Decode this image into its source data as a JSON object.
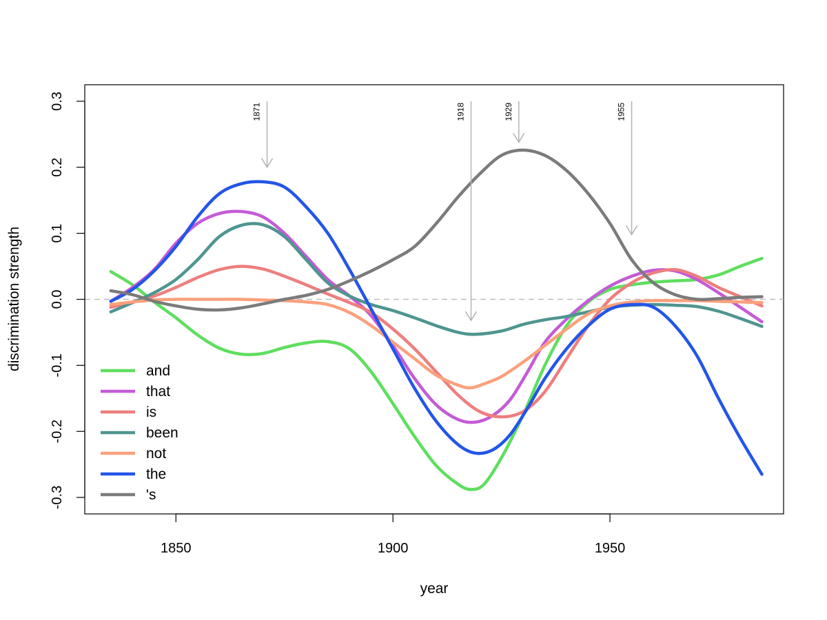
{
  "chart_data": {
    "type": "line",
    "xlabel": "year",
    "ylabel": "discrimination strength",
    "xlim": [
      1829,
      1990
    ],
    "ylim": [
      -0.325,
      0.325
    ],
    "xticks": [
      {
        "value": 1850,
        "label": "1850"
      },
      {
        "value": 1900,
        "label": "1900"
      },
      {
        "value": 1950,
        "label": "1950"
      }
    ],
    "yticks": [
      {
        "value": -0.3,
        "label": "-0.3"
      },
      {
        "value": -0.2,
        "label": "-0.2"
      },
      {
        "value": -0.1,
        "label": "-0.1"
      },
      {
        "value": 0.0,
        "label": "0.0"
      },
      {
        "value": 0.1,
        "label": "0.1"
      },
      {
        "value": 0.2,
        "label": "0.2"
      },
      {
        "value": 0.3,
        "label": "0.3"
      }
    ],
    "reference_line": {
      "y": 0,
      "style": "dashed",
      "color": "#bbbbbb"
    },
    "legend_position": "bottom-left",
    "events": [
      {
        "year": 1871,
        "label": "1871",
        "arrow_to": 0.2
      },
      {
        "year": 1918,
        "label": "1918",
        "arrow_to": -0.032
      },
      {
        "year": 1929,
        "label": "1929",
        "arrow_to": 0.238
      },
      {
        "year": 1955,
        "label": "1955",
        "arrow_to": 0.098
      }
    ],
    "series": [
      {
        "name": "and",
        "color": "#5fde5f",
        "points": [
          [
            1835,
            0.042
          ],
          [
            1840,
            0.022
          ],
          [
            1845,
            -0.004
          ],
          [
            1850,
            -0.028
          ],
          [
            1855,
            -0.054
          ],
          [
            1860,
            -0.074
          ],
          [
            1865,
            -0.083
          ],
          [
            1870,
            -0.082
          ],
          [
            1875,
            -0.073
          ],
          [
            1880,
            -0.066
          ],
          [
            1885,
            -0.064
          ],
          [
            1890,
            -0.075
          ],
          [
            1895,
            -0.11
          ],
          [
            1900,
            -0.158
          ],
          [
            1905,
            -0.208
          ],
          [
            1910,
            -0.252
          ],
          [
            1915,
            -0.28
          ],
          [
            1918,
            -0.288
          ],
          [
            1921,
            -0.28
          ],
          [
            1925,
            -0.24
          ],
          [
            1930,
            -0.175
          ],
          [
            1935,
            -0.1
          ],
          [
            1940,
            -0.04
          ],
          [
            1945,
            -0.004
          ],
          [
            1950,
            0.015
          ],
          [
            1955,
            0.022
          ],
          [
            1960,
            0.026
          ],
          [
            1965,
            0.028
          ],
          [
            1970,
            0.03
          ],
          [
            1975,
            0.037
          ],
          [
            1980,
            0.05
          ],
          [
            1985,
            0.062
          ]
        ]
      },
      {
        "name": "that",
        "color": "#c45bd6",
        "points": [
          [
            1835,
            -0.003
          ],
          [
            1840,
            0.018
          ],
          [
            1845,
            0.045
          ],
          [
            1850,
            0.085
          ],
          [
            1855,
            0.115
          ],
          [
            1860,
            0.13
          ],
          [
            1865,
            0.133
          ],
          [
            1870,
            0.125
          ],
          [
            1875,
            0.1
          ],
          [
            1880,
            0.065
          ],
          [
            1885,
            0.03
          ],
          [
            1890,
            0.005
          ],
          [
            1895,
            -0.025
          ],
          [
            1900,
            -0.07
          ],
          [
            1905,
            -0.12
          ],
          [
            1910,
            -0.16
          ],
          [
            1915,
            -0.182
          ],
          [
            1919,
            -0.186
          ],
          [
            1923,
            -0.176
          ],
          [
            1927,
            -0.152
          ],
          [
            1931,
            -0.11
          ],
          [
            1935,
            -0.065
          ],
          [
            1940,
            -0.03
          ],
          [
            1945,
            -0.002
          ],
          [
            1950,
            0.02
          ],
          [
            1955,
            0.035
          ],
          [
            1960,
            0.044
          ],
          [
            1965,
            0.043
          ],
          [
            1970,
            0.03
          ],
          [
            1975,
            0.01
          ],
          [
            1980,
            -0.012
          ],
          [
            1985,
            -0.034
          ]
        ]
      },
      {
        "name": "is",
        "color": "#ee7e7e",
        "points": [
          [
            1835,
            -0.012
          ],
          [
            1840,
            -0.004
          ],
          [
            1845,
            0.005
          ],
          [
            1850,
            0.018
          ],
          [
            1855,
            0.033
          ],
          [
            1860,
            0.045
          ],
          [
            1865,
            0.05
          ],
          [
            1870,
            0.046
          ],
          [
            1875,
            0.035
          ],
          [
            1880,
            0.022
          ],
          [
            1885,
            0.008
          ],
          [
            1890,
            -0.005
          ],
          [
            1895,
            -0.02
          ],
          [
            1900,
            -0.045
          ],
          [
            1905,
            -0.075
          ],
          [
            1910,
            -0.11
          ],
          [
            1915,
            -0.145
          ],
          [
            1920,
            -0.17
          ],
          [
            1925,
            -0.178
          ],
          [
            1930,
            -0.17
          ],
          [
            1935,
            -0.14
          ],
          [
            1940,
            -0.09
          ],
          [
            1945,
            -0.04
          ],
          [
            1950,
            0.0
          ],
          [
            1955,
            0.025
          ],
          [
            1960,
            0.04
          ],
          [
            1965,
            0.045
          ],
          [
            1970,
            0.035
          ],
          [
            1975,
            0.018
          ],
          [
            1980,
            0.004
          ],
          [
            1985,
            -0.01
          ]
        ]
      },
      {
        "name": "been",
        "color": "#4f9590",
        "points": [
          [
            1835,
            -0.019
          ],
          [
            1840,
            -0.005
          ],
          [
            1845,
            0.01
          ],
          [
            1850,
            0.03
          ],
          [
            1855,
            0.06
          ],
          [
            1860,
            0.095
          ],
          [
            1865,
            0.112
          ],
          [
            1870,
            0.113
          ],
          [
            1875,
            0.095
          ],
          [
            1880,
            0.06
          ],
          [
            1885,
            0.025
          ],
          [
            1890,
            0.005
          ],
          [
            1895,
            -0.008
          ],
          [
            1900,
            -0.017
          ],
          [
            1905,
            -0.028
          ],
          [
            1910,
            -0.04
          ],
          [
            1915,
            -0.05
          ],
          [
            1919,
            -0.053
          ],
          [
            1925,
            -0.048
          ],
          [
            1930,
            -0.038
          ],
          [
            1935,
            -0.031
          ],
          [
            1940,
            -0.026
          ],
          [
            1945,
            -0.019
          ],
          [
            1950,
            -0.012
          ],
          [
            1955,
            -0.009
          ],
          [
            1960,
            -0.008
          ],
          [
            1965,
            -0.009
          ],
          [
            1970,
            -0.011
          ],
          [
            1975,
            -0.018
          ],
          [
            1980,
            -0.029
          ],
          [
            1985,
            -0.041
          ]
        ]
      },
      {
        "name": "not",
        "color": "#fba07c",
        "points": [
          [
            1835,
            -0.008
          ],
          [
            1840,
            -0.004
          ],
          [
            1845,
            -0.001
          ],
          [
            1850,
            0.0
          ],
          [
            1855,
            0.0
          ],
          [
            1860,
            0.0
          ],
          [
            1865,
            0.0
          ],
          [
            1870,
            -0.001
          ],
          [
            1875,
            -0.002
          ],
          [
            1880,
            -0.004
          ],
          [
            1885,
            -0.008
          ],
          [
            1890,
            -0.02
          ],
          [
            1895,
            -0.04
          ],
          [
            1900,
            -0.065
          ],
          [
            1905,
            -0.09
          ],
          [
            1910,
            -0.115
          ],
          [
            1915,
            -0.13
          ],
          [
            1918,
            -0.134
          ],
          [
            1921,
            -0.128
          ],
          [
            1925,
            -0.117
          ],
          [
            1930,
            -0.095
          ],
          [
            1935,
            -0.07
          ],
          [
            1940,
            -0.045
          ],
          [
            1945,
            -0.022
          ],
          [
            1950,
            -0.01
          ],
          [
            1955,
            -0.004
          ],
          [
            1960,
            -0.002
          ],
          [
            1965,
            -0.002
          ],
          [
            1970,
            -0.002
          ],
          [
            1975,
            -0.003
          ],
          [
            1980,
            -0.004
          ],
          [
            1985,
            -0.005
          ]
        ]
      },
      {
        "name": "the",
        "color": "#2355e8",
        "points": [
          [
            1835,
            -0.003
          ],
          [
            1840,
            0.015
          ],
          [
            1845,
            0.043
          ],
          [
            1850,
            0.08
          ],
          [
            1855,
            0.125
          ],
          [
            1860,
            0.16
          ],
          [
            1865,
            0.175
          ],
          [
            1870,
            0.178
          ],
          [
            1875,
            0.17
          ],
          [
            1880,
            0.14
          ],
          [
            1885,
            0.1
          ],
          [
            1890,
            0.045
          ],
          [
            1895,
            -0.015
          ],
          [
            1900,
            -0.075
          ],
          [
            1905,
            -0.135
          ],
          [
            1910,
            -0.185
          ],
          [
            1915,
            -0.22
          ],
          [
            1919,
            -0.233
          ],
          [
            1923,
            -0.228
          ],
          [
            1927,
            -0.205
          ],
          [
            1931,
            -0.165
          ],
          [
            1935,
            -0.12
          ],
          [
            1940,
            -0.075
          ],
          [
            1945,
            -0.04
          ],
          [
            1950,
            -0.015
          ],
          [
            1955,
            -0.008
          ],
          [
            1960,
            -0.012
          ],
          [
            1965,
            -0.04
          ],
          [
            1970,
            -0.085
          ],
          [
            1975,
            -0.15
          ],
          [
            1980,
            -0.21
          ],
          [
            1985,
            -0.265
          ]
        ]
      },
      {
        "name": "'s",
        "color": "#7b7b7b",
        "points": [
          [
            1835,
            0.013
          ],
          [
            1840,
            0.007
          ],
          [
            1845,
            -0.003
          ],
          [
            1850,
            -0.01
          ],
          [
            1855,
            -0.015
          ],
          [
            1860,
            -0.016
          ],
          [
            1865,
            -0.013
          ],
          [
            1870,
            -0.007
          ],
          [
            1875,
            0.0
          ],
          [
            1880,
            0.006
          ],
          [
            1885,
            0.015
          ],
          [
            1890,
            0.028
          ],
          [
            1895,
            0.043
          ],
          [
            1900,
            0.06
          ],
          [
            1905,
            0.08
          ],
          [
            1910,
            0.115
          ],
          [
            1915,
            0.155
          ],
          [
            1920,
            0.19
          ],
          [
            1925,
            0.218
          ],
          [
            1930,
            0.226
          ],
          [
            1935,
            0.218
          ],
          [
            1940,
            0.195
          ],
          [
            1945,
            0.16
          ],
          [
            1950,
            0.115
          ],
          [
            1955,
            0.06
          ],
          [
            1960,
            0.025
          ],
          [
            1965,
            0.007
          ],
          [
            1970,
            0.0
          ],
          [
            1975,
            0.001
          ],
          [
            1980,
            0.003
          ],
          [
            1985,
            0.004
          ]
        ]
      }
    ]
  }
}
